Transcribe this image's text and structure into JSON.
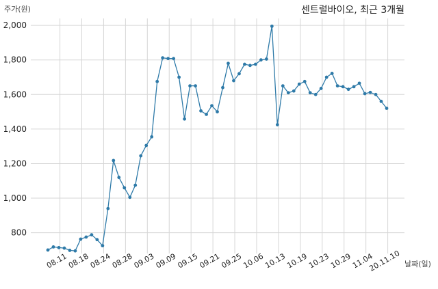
{
  "chart_data": {
    "type": "line",
    "title": "센트럴바이오, 최근 3개월",
    "ylabel": "주가(원)",
    "xlabel": "날짜(일)",
    "ylim": [
      680,
      2040
    ],
    "yticks": [
      800,
      1000,
      1200,
      1400,
      1600,
      1800,
      2000
    ],
    "ytick_labels": [
      "800",
      "1,000",
      "1,200",
      "1,400",
      "1,600",
      "1,800",
      "2,000"
    ],
    "xtick_labels": [
      "08.11",
      "08.18",
      "08.24",
      "08.28",
      "09.03",
      "09.09",
      "09.15",
      "09.21",
      "09.25",
      "10.06",
      "10.13",
      "10.19",
      "10.23",
      "10.29",
      "11.04",
      "20.11.10"
    ],
    "xtick_positions": [
      2.2,
      6.2,
      10.2,
      14.2,
      18.2,
      22.2,
      26.2,
      30.2,
      34.2,
      38.2,
      42.2,
      46.2,
      50.2,
      54.2,
      58.2,
      62.2
    ],
    "grid": true,
    "color": "#2e7aa8",
    "series": [
      {
        "values": [
          700,
          718,
          714,
          711,
          698,
          695,
          763,
          775,
          788,
          760,
          725,
          940,
          1218,
          1120,
          1060,
          1005,
          1075,
          1245,
          1305,
          1355,
          1675,
          1812,
          1808,
          1808,
          1700,
          1458,
          1650,
          1650,
          1505,
          1485,
          1535,
          1500,
          1640,
          1780,
          1680,
          1720,
          1775,
          1768,
          1775,
          1800,
          1805,
          1995,
          1425,
          1650,
          1610,
          1620,
          1660,
          1675,
          1610,
          1600,
          1635,
          1700,
          1722,
          1650,
          1645,
          1630,
          1645,
          1665,
          1605,
          1612,
          1600,
          1560,
          1520
        ]
      }
    ]
  }
}
